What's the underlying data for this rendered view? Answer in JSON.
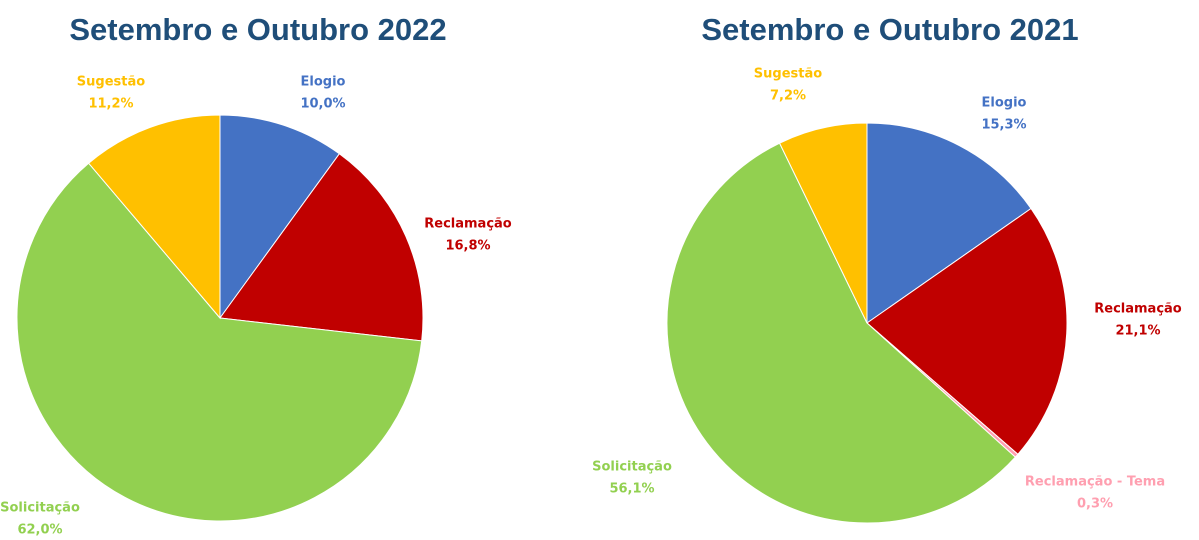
{
  "chart_data": [
    {
      "type": "pie",
      "title": "Setembro e Outubro 2022",
      "categories": [
        "Elogio",
        "Reclamação",
        "Solicitação",
        "Sugestão"
      ],
      "values": [
        10.0,
        16.8,
        62.0,
        11.2
      ],
      "value_labels": [
        "10,0%",
        "16,8%",
        "62,0%",
        "11,2%"
      ],
      "colors": [
        "#4472c4",
        "#c00000",
        "#92d050",
        "#ffc000"
      ]
    },
    {
      "type": "pie",
      "title": "Setembro e Outubro 2021",
      "categories": [
        "Elogio",
        "Reclamação",
        "Reclamação - Tema",
        "Solicitação",
        "Sugestão"
      ],
      "values": [
        15.3,
        21.1,
        0.3,
        56.1,
        7.2
      ],
      "value_labels": [
        "15,3%",
        "21,1%",
        "0,3%",
        "56,1%",
        "7,2%"
      ],
      "colors": [
        "#4472c4",
        "#c00000",
        "#ff9fb0",
        "#92d050",
        "#ffc000"
      ]
    }
  ]
}
